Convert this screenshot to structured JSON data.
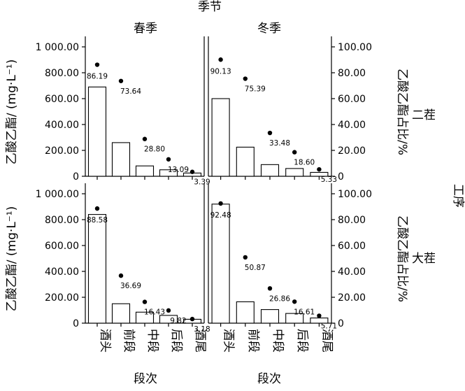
{
  "chart_data": {
    "type": "bar",
    "title": "季节",
    "columns": [
      "春季",
      "冬季"
    ],
    "rows": [
      "二茬",
      "大茬"
    ],
    "row_axis_label": "工序",
    "xlabel": "段次",
    "ylabel_left": "乙酸乙酯/ (mg·L⁻¹)",
    "ylabel_right": "乙酸乙酯占比/%",
    "categories": [
      "酒头",
      "前段",
      "中段",
      "后段",
      "酒尾"
    ],
    "ylim_left": [
      0,
      1000
    ],
    "ylim_right": [
      0,
      100
    ],
    "yticks_left": [
      "0",
      "200.00",
      "400.00",
      "600.00",
      "800.00",
      "1 000.00"
    ],
    "yticks_right": [
      "0",
      "20.00",
      "40.00",
      "60.00",
      "80.00",
      "100.00"
    ],
    "panels": [
      {
        "season": "春季",
        "process": "二茬",
        "concentration": [
          690,
          260,
          80,
          50,
          25
        ],
        "percent": [
          86.19,
          73.64,
          28.8,
          13.09,
          3.39
        ],
        "labels": [
          "86.19",
          "73.64",
          "28.80",
          "13.09",
          "3.39"
        ]
      },
      {
        "season": "冬季",
        "process": "二茬",
        "concentration": [
          600,
          225,
          90,
          60,
          30
        ],
        "percent": [
          90.13,
          75.39,
          33.48,
          18.6,
          5.33
        ],
        "labels": [
          "90.13",
          "75.39",
          "33.48",
          "18.60",
          "5.33"
        ]
      },
      {
        "season": "春季",
        "process": "大茬",
        "concentration": [
          840,
          150,
          85,
          60,
          30
        ],
        "percent": [
          88.58,
          36.69,
          16.43,
          9.82,
          3.18
        ],
        "labels": [
          "88.58",
          "36.69",
          "16.43",
          "9.82",
          "3.18"
        ]
      },
      {
        "season": "冬季",
        "process": "大茬",
        "concentration": [
          920,
          165,
          105,
          75,
          40
        ],
        "percent": [
          92.48,
          50.87,
          26.86,
          16.61,
          5.71
        ],
        "labels": [
          "92.48",
          "50.87",
          "26.86",
          "16.61",
          "5.71"
        ]
      }
    ]
  }
}
